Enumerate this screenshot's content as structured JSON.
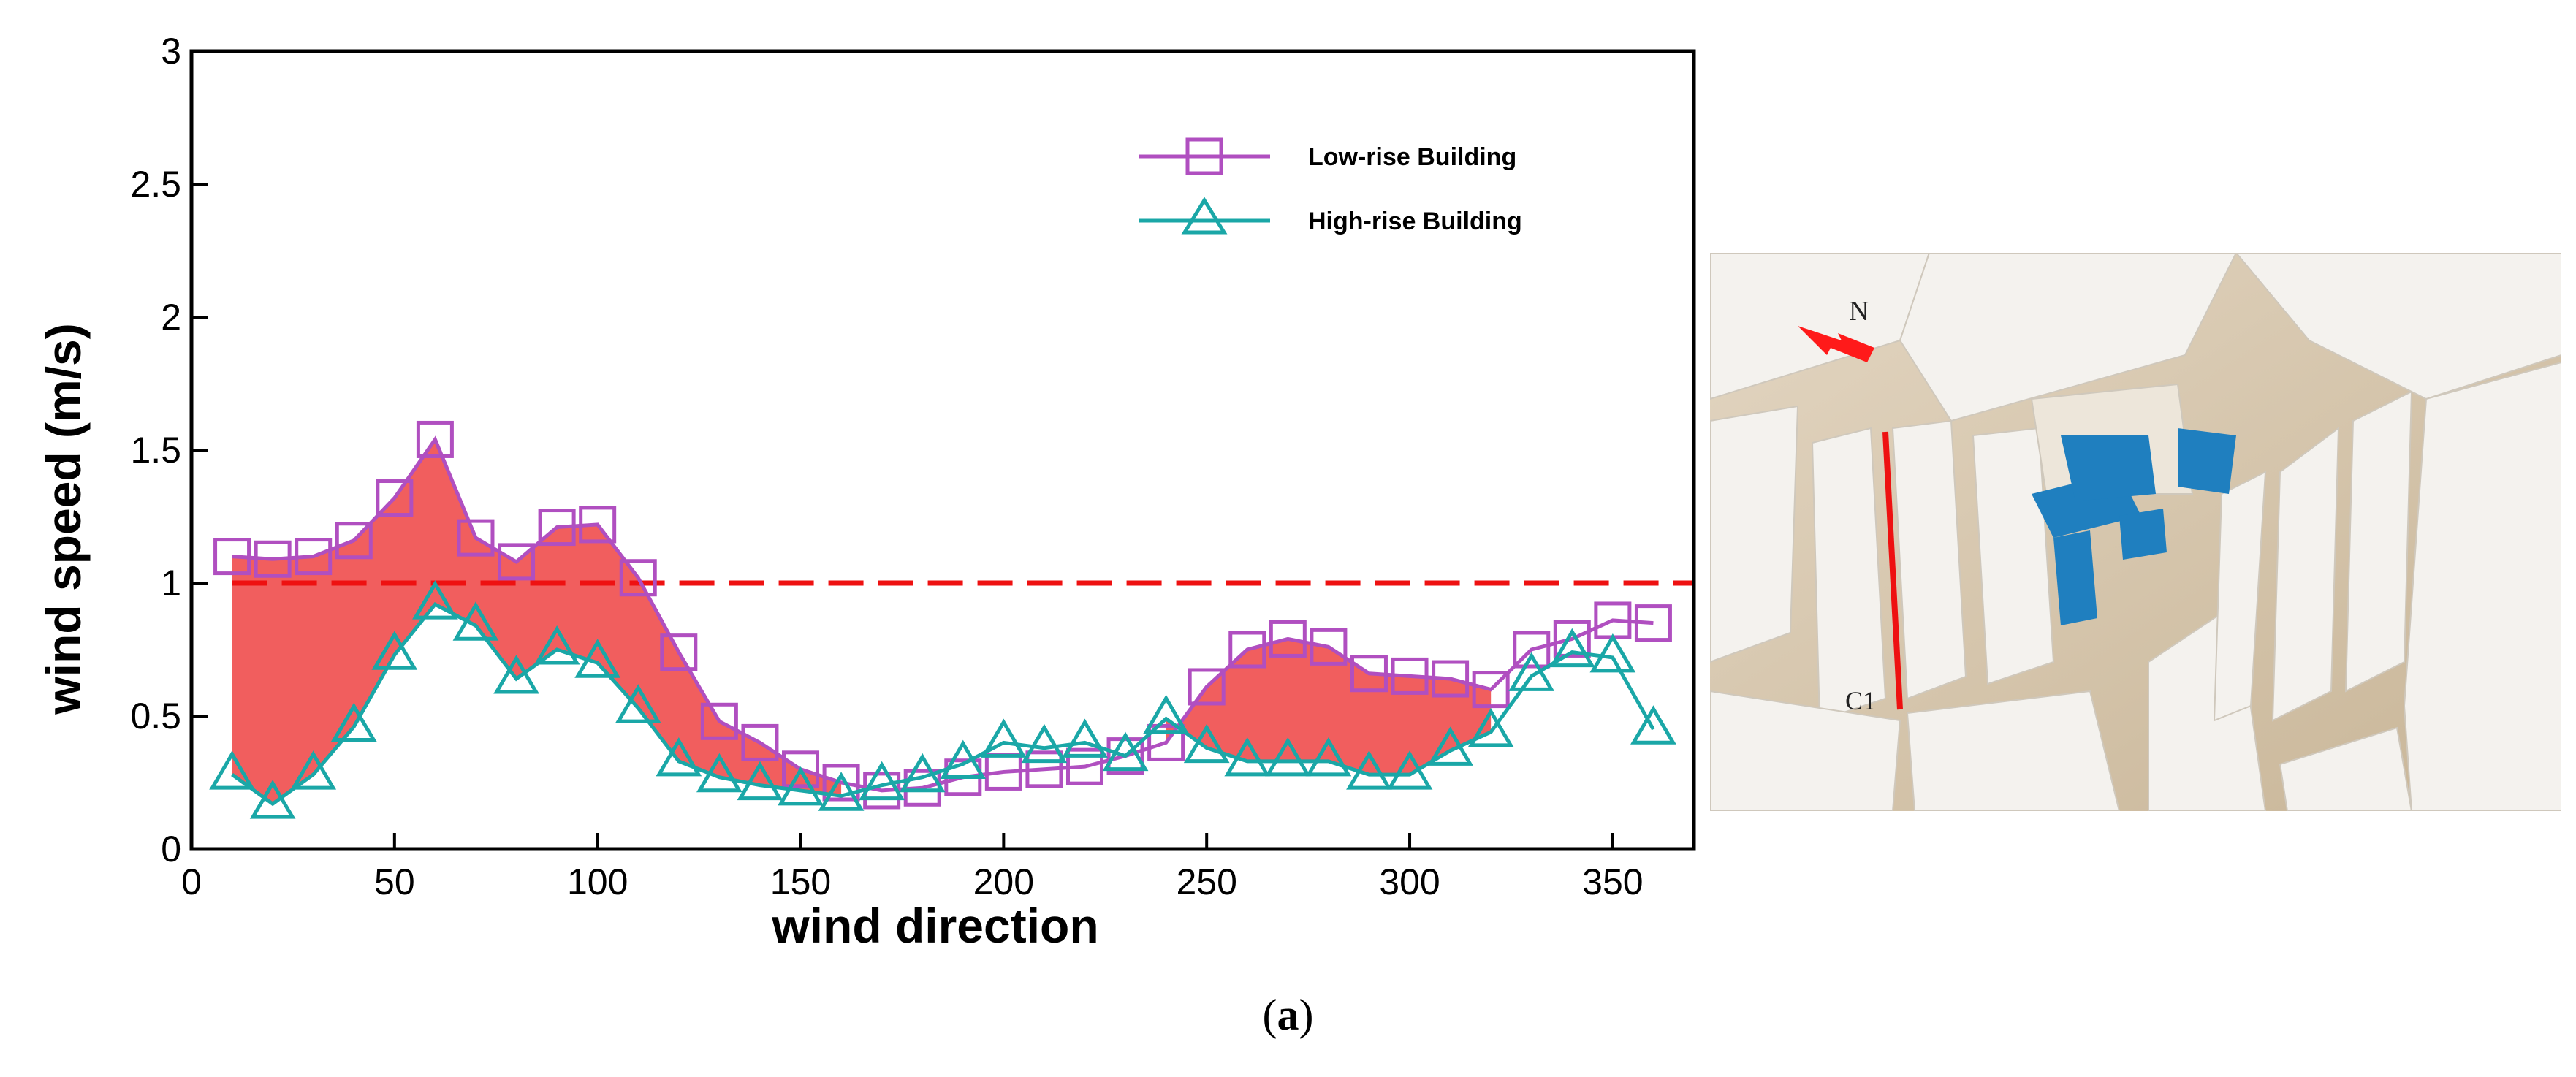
{
  "chart_data": {
    "type": "line",
    "xlabel": "wind direction",
    "ylabel": "wind speed (m/s)",
    "xlim": [
      0,
      370
    ],
    "ylim": [
      0,
      3
    ],
    "xticks": [
      0,
      50,
      100,
      150,
      200,
      250,
      300,
      350
    ],
    "yticks": [
      0,
      0.5,
      1,
      1.5,
      2,
      2.5,
      3
    ],
    "ytick_labels": [
      "0",
      "0.5",
      "1",
      "1.5",
      "2",
      "2.5",
      "3"
    ],
    "reference_line": {
      "y": 1.0,
      "style": "dashed",
      "color": "#ee1111"
    },
    "series": [
      {
        "name": "Low-rise Building",
        "marker": "square",
        "color": "#b04fc0",
        "x": [
          10,
          20,
          30,
          40,
          50,
          60,
          70,
          80,
          90,
          100,
          110,
          120,
          130,
          140,
          150,
          160,
          170,
          180,
          190,
          200,
          210,
          220,
          230,
          240,
          250,
          260,
          270,
          280,
          290,
          300,
          310,
          320,
          330,
          340,
          350,
          360
        ],
        "values": [
          1.1,
          1.09,
          1.1,
          1.16,
          1.32,
          1.54,
          1.17,
          1.08,
          1.21,
          1.22,
          1.02,
          0.74,
          0.48,
          0.4,
          0.3,
          0.25,
          0.22,
          0.23,
          0.27,
          0.29,
          0.3,
          0.31,
          0.35,
          0.4,
          0.61,
          0.75,
          0.79,
          0.76,
          0.66,
          0.65,
          0.64,
          0.6,
          0.75,
          0.79,
          0.86,
          0.85
        ]
      },
      {
        "name": "High-rise Building",
        "marker": "triangle",
        "color": "#1aa7a7",
        "x": [
          10,
          20,
          30,
          40,
          50,
          60,
          70,
          80,
          90,
          100,
          110,
          120,
          130,
          140,
          150,
          160,
          170,
          180,
          190,
          200,
          210,
          220,
          230,
          240,
          250,
          260,
          270,
          280,
          290,
          300,
          310,
          320,
          330,
          340,
          350,
          360
        ],
        "values": [
          0.28,
          0.17,
          0.28,
          0.46,
          0.73,
          0.92,
          0.84,
          0.64,
          0.75,
          0.7,
          0.53,
          0.33,
          0.27,
          0.24,
          0.22,
          0.2,
          0.24,
          0.27,
          0.32,
          0.4,
          0.38,
          0.4,
          0.35,
          0.49,
          0.38,
          0.33,
          0.33,
          0.33,
          0.28,
          0.28,
          0.37,
          0.44,
          0.65,
          0.74,
          0.72,
          0.45
        ]
      }
    ],
    "shaded_region": {
      "between": [
        "Low-rise Building",
        "High-rise Building"
      ],
      "color": "#f05050",
      "x_ranges": [
        [
          10,
          160
        ],
        [
          240,
          320
        ]
      ]
    }
  },
  "photo": {
    "north_label": "N",
    "line_label": "C1",
    "colors": {
      "arrow": "#ff1a1a",
      "highlight": "#1f7fbf",
      "line": "#ee1111"
    }
  },
  "caption": {
    "open": "(",
    "letter": "a",
    "close": ")"
  }
}
